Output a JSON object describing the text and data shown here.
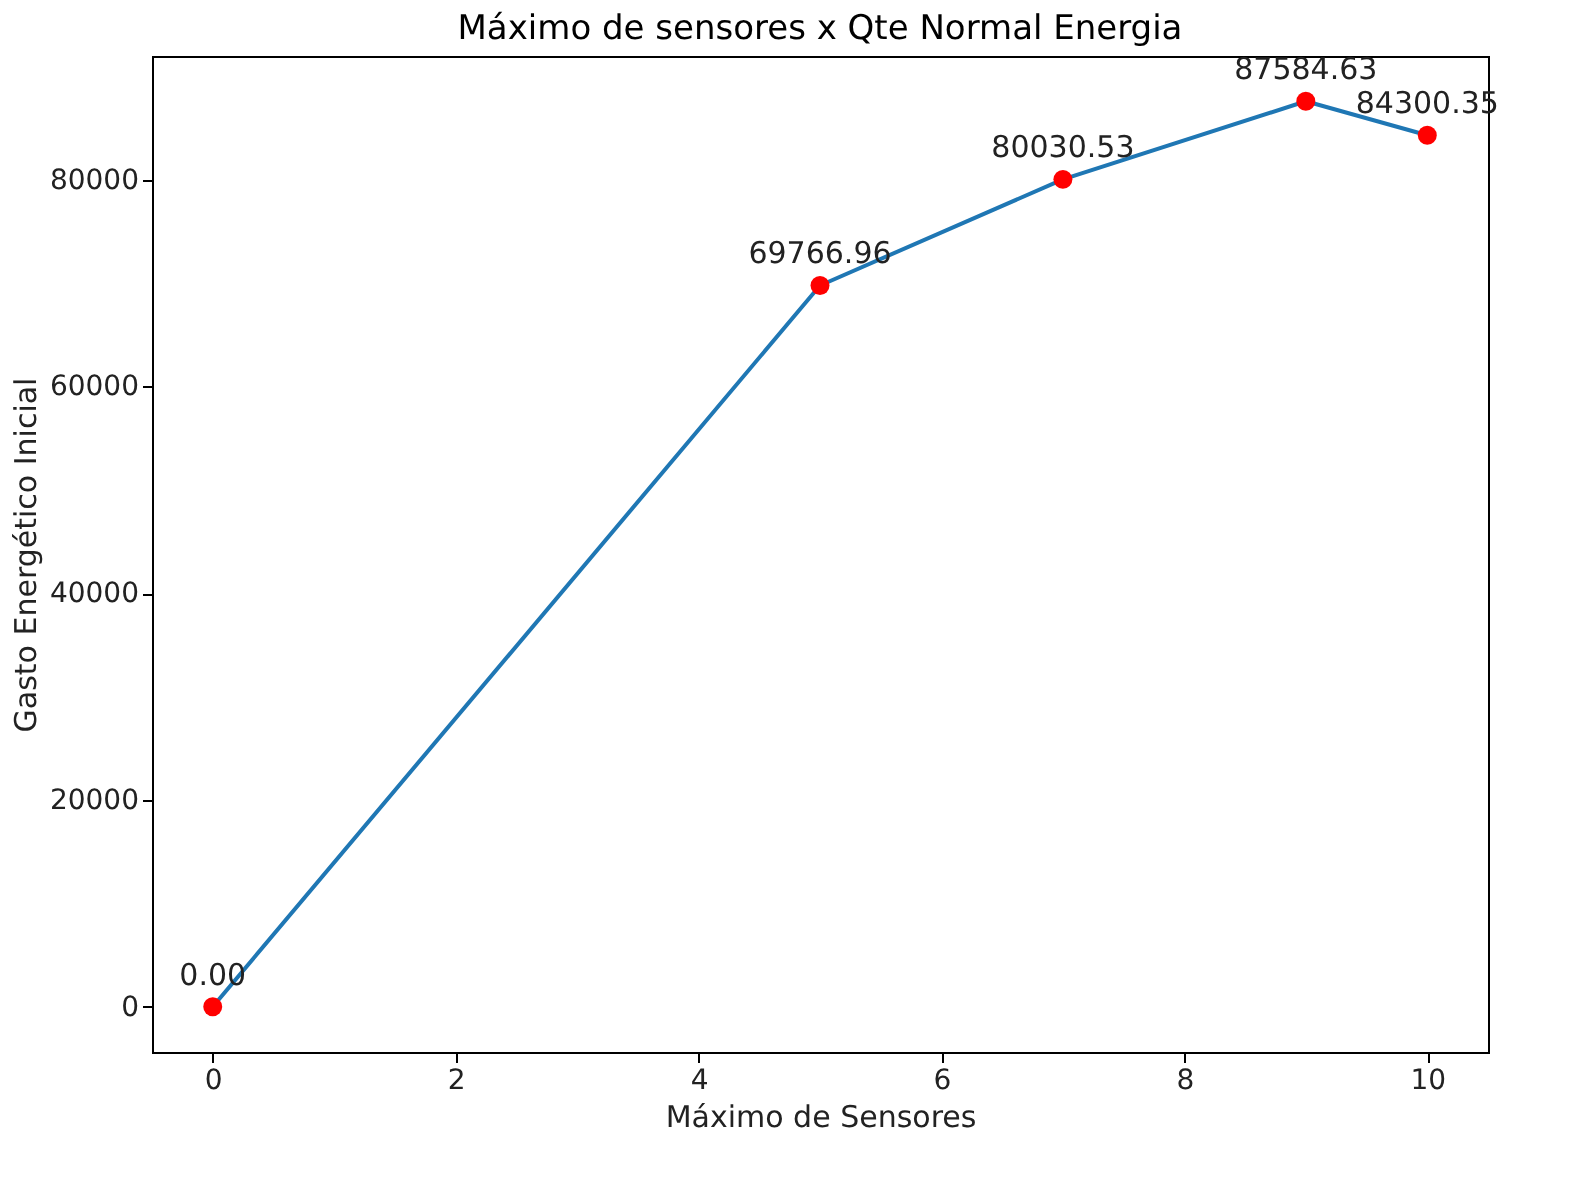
{
  "chart_data": {
    "type": "line",
    "title": "Máximo de sensores x Qte Normal Energia",
    "xlabel": "Máximo de Sensores",
    "ylabel": "Gasto Energético Inicial",
    "x": [
      0,
      5,
      7,
      9,
      10
    ],
    "series": [
      {
        "type": "line",
        "color": "#1f77b4",
        "values": [
          0,
          69766.96,
          80030.53,
          87584.63,
          84300.35
        ]
      },
      {
        "type": "scatter",
        "color": "#ff0000",
        "marker": "circle",
        "values": [
          0,
          69766.96,
          80030.53,
          87584.63,
          84300.35
        ],
        "value_labels": [
          "0.00",
          "69766.96",
          "80030.53",
          "87584.63",
          "84300.35"
        ]
      }
    ],
    "xlim": [
      -0.5,
      10.5
    ],
    "xticks": [
      0,
      2,
      4,
      6,
      8,
      10
    ],
    "ylim": [
      -4379.23,
      91963.86
    ],
    "yticks": [
      0,
      20000,
      40000,
      60000,
      80000
    ],
    "grid": false
  }
}
